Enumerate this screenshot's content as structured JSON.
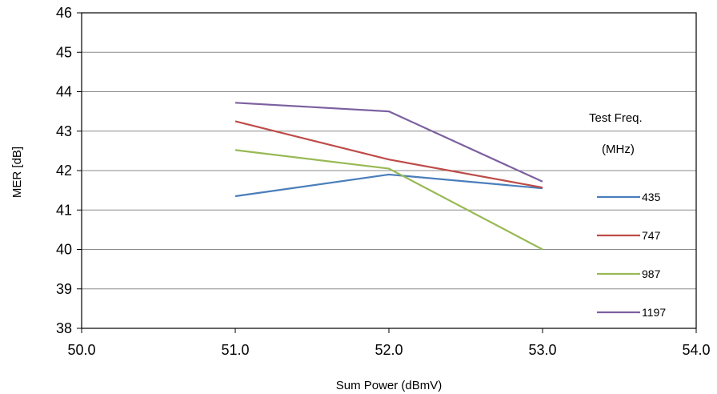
{
  "chart_data": {
    "type": "line",
    "xlabel": "Sum Power (dBmV)",
    "ylabel": "MER [dB]",
    "xlim": [
      50.0,
      54.0
    ],
    "ylim": [
      38,
      46
    ],
    "x_ticks": [
      "50.0",
      "51.0",
      "52.0",
      "53.0",
      "54.0"
    ],
    "y_ticks": [
      "38",
      "39",
      "40",
      "41",
      "42",
      "43",
      "44",
      "45",
      "46"
    ],
    "grid": "horizontal",
    "legend": {
      "placement": "right",
      "title_line1": "Test Freq.",
      "title_line2": "(MHz)"
    },
    "x": [
      51.0,
      52.0,
      53.0
    ],
    "series": [
      {
        "name": "435",
        "color": "#4a7ebb",
        "values": [
          41.35,
          41.9,
          41.55
        ]
      },
      {
        "name": "747",
        "color": "#be4b48",
        "values": [
          43.25,
          42.28,
          41.57
        ]
      },
      {
        "name": "987",
        "color": "#98b954",
        "values": [
          42.52,
          42.05,
          40.0
        ]
      },
      {
        "name": "1197",
        "color": "#7d60a0",
        "values": [
          43.72,
          43.5,
          41.72
        ]
      }
    ]
  }
}
